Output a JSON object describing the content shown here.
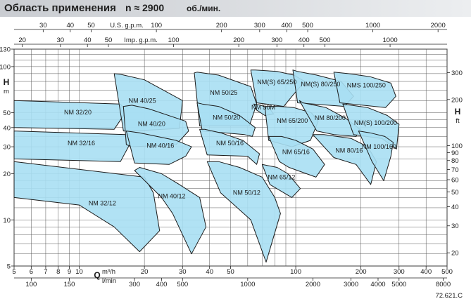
{
  "header": {
    "title": "Область применения",
    "speed_label": "n ≈ 2900",
    "speed_unit": "об./мин."
  },
  "chart_data": {
    "type": "area",
    "title": "Область применения n ≈ 2900 об./мин.",
    "xlabel": "Q",
    "xunit_primary": "m³/h",
    "xunit_secondary": "l/min",
    "ylabel_left": "H",
    "yunit_left": "m",
    "ylabel_right": "H",
    "yunit_right": "ft",
    "xscale": "log",
    "yscale": "log",
    "xlim_m3h": [
      5,
      500
    ],
    "ylim_m": [
      5,
      130
    ],
    "grid": true,
    "bottom_ticks_m3h": [
      "5",
      "6",
      "7",
      "8",
      "9",
      "10",
      "20",
      "30",
      "40",
      "50",
      "100",
      "200",
      "300",
      "400",
      "500"
    ],
    "bottom_ticks_lmin": [
      "100",
      "150",
      "300",
      "400",
      "500",
      "1000",
      "2000",
      "3000",
      "4000",
      "5000",
      "8000"
    ],
    "top_usgpm_label": "U.S. g.p.m.",
    "top_usgpm_ticks": [
      "30",
      "40",
      "50",
      "100",
      "200",
      "300",
      "400",
      "500",
      "1000",
      "2000"
    ],
    "top_impgpm_label": "Imp. g.p.m.",
    "top_impgpm_ticks": [
      "20",
      "30",
      "40",
      "50",
      "100",
      "200",
      "300",
      "400",
      "500",
      "1000"
    ],
    "left_ticks_m": [
      "5",
      "10",
      "20",
      "30",
      "40",
      "50",
      "100",
      "130"
    ],
    "right_ticks_ft": [
      "20",
      "30",
      "40",
      "50",
      "60",
      "70",
      "80",
      "90",
      "100",
      "200",
      "300"
    ],
    "footnote": "72.621.C",
    "pump_regions": [
      {
        "name": "NM 32/20",
        "q": [
          5,
          5,
          14.5,
          16.5,
          15.5
        ],
        "h": [
          60,
          40,
          39,
          51,
          57
        ]
      },
      {
        "name": "NM 32/16",
        "q": [
          5,
          5,
          15.5,
          17.5,
          16.5
        ],
        "h": [
          38,
          25,
          24,
          33,
          36
        ]
      },
      {
        "name": "NM 32/12",
        "q": [
          5,
          5,
          10,
          14.5,
          19,
          23.5,
          22,
          20
        ],
        "h": [
          24,
          14,
          12.5,
          9,
          6.2,
          8.5,
          15,
          19
        ]
      },
      {
        "name": "NM 40/25",
        "q": [
          14.5,
          16,
          17.5,
          29,
          30,
          20,
          15.5
        ],
        "h": [
          90,
          38,
          38,
          39.5,
          60,
          82,
          89
        ]
      },
      {
        "name": "NM 40/20",
        "q": [
          16,
          16.5,
          17.5,
          28,
          32,
          31,
          21,
          17.5
        ],
        "h": [
          55,
          31,
          30,
          31,
          38,
          44,
          53,
          56
        ]
      },
      {
        "name": "NM 40/16",
        "q": [
          16.5,
          18,
          26,
          31,
          33,
          28,
          19
        ],
        "h": [
          38,
          23.5,
          23,
          26,
          30,
          33,
          37
        ]
      },
      {
        "name": "NM 40/12",
        "q": [
          18,
          24,
          27,
          33,
          38.5,
          36,
          29,
          24,
          19
        ],
        "h": [
          21,
          14,
          11,
          6,
          9,
          14,
          17,
          20,
          22
        ]
      },
      {
        "name": "NM 50/25",
        "q": [
          34,
          36,
          61,
          66,
          62,
          44,
          35
        ],
        "h": [
          91,
          41,
          41,
          57,
          74,
          88,
          92
        ]
      },
      {
        "name": "NM 50/20",
        "q": [
          35,
          37,
          58,
          63,
          65,
          55,
          44,
          37
        ],
        "h": [
          58,
          38,
          36,
          35,
          40,
          48,
          55,
          57
        ]
      },
      {
        "name": "NM 50/16",
        "q": [
          36,
          39,
          60,
          66,
          68,
          57,
          45,
          38
        ],
        "h": [
          39,
          26.5,
          26,
          23,
          27,
          33,
          37,
          39
        ]
      },
      {
        "name": "NM 50/12",
        "q": [
          39,
          45,
          62,
          73,
          85,
          80,
          70,
          55,
          44
        ],
        "h": [
          24,
          15,
          10,
          5.3,
          11,
          14,
          19,
          22,
          24
        ]
      },
      {
        "name": "NM(S) 65/250",
        "q": [
          62,
          66,
          88,
          97,
          110,
          98,
          82,
          65
        ],
        "h": [
          95,
          58,
          55,
          65,
          80,
          88,
          93,
          95
        ]
      },
      {
        "name": "NM 50M",
        "q": [
          64,
          66,
          72,
          79,
          76,
          69
        ],
        "h": [
          57,
          52,
          48,
          49,
          53,
          56
        ]
      },
      {
        "name": "NM 65/200",
        "q": [
          72,
          75,
          96,
          117,
          127,
          118,
          98,
          84
        ],
        "h": [
          55,
          33,
          30,
          33,
          44,
          50,
          54,
          55
        ]
      },
      {
        "name": "NM 65/16",
        "q": [
          75,
          84,
          93,
          124,
          136,
          120,
          100,
          86
        ],
        "h": [
          35,
          24,
          22,
          19,
          23,
          29,
          33,
          35
        ]
      },
      {
        "name": "NM 65/12",
        "q": [
          70,
          76,
          96,
          105,
          92,
          82
        ],
        "h": [
          23,
          17,
          14,
          16,
          20,
          22
        ]
      },
      {
        "name": "NM(S) 80/250",
        "q": [
          97,
          102,
          168,
          185,
          162,
          125,
          102
        ],
        "h": [
          95,
          58,
          55,
          64,
          80,
          88,
          93
        ]
      },
      {
        "name": "NM 80/200",
        "q": [
          104,
          125,
          150,
          190,
          198,
          170,
          138,
          108
        ],
        "h": [
          60,
          38,
          36,
          35,
          39,
          46,
          54,
          58
        ]
      },
      {
        "name": "NM 80/16",
        "q": [
          120,
          150,
          190,
          222,
          236,
          215,
          180,
          135
        ],
        "h": [
          36,
          25.5,
          23,
          17,
          24,
          30,
          34,
          36
        ]
      },
      {
        "name": "NMS 100/250",
        "q": [
          150,
          160,
          260,
          290,
          275,
          220,
          175
        ],
        "h": [
          92,
          58,
          54,
          64,
          78,
          86,
          90
        ]
      },
      {
        "name": "NM(S) 100/200",
        "q": [
          165,
          185,
          250,
          292,
          300,
          265,
          215
        ],
        "h": [
          57,
          36,
          34,
          29,
          42,
          48,
          54
        ]
      },
      {
        "name": "NM 100/160",
        "q": [
          195,
          225,
          255,
          275,
          282,
          258,
          220
        ],
        "h": [
          38,
          24,
          18,
          26,
          32,
          35,
          37
        ]
      }
    ]
  }
}
